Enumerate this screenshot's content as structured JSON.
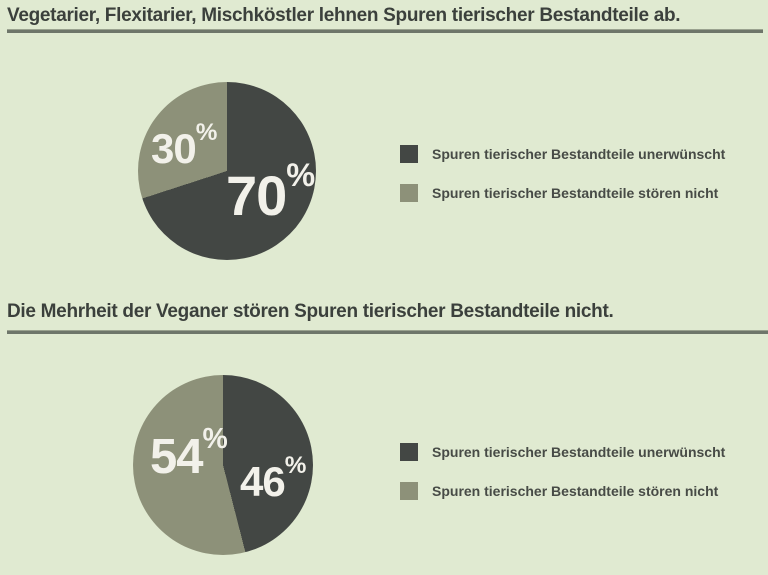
{
  "page": {
    "background_color": "#e0ead1",
    "separator_color": "#6e766a",
    "title_color": "#3b403c",
    "legend_text_color": "#474b46",
    "pie_label_color": "#f2f1ea"
  },
  "sections": [
    {
      "title": "Vegetarier, Flexitarier, Mischköstler lehnen Spuren tierischer Bestandteile ab.",
      "legend": [
        {
          "label": "Spuren tierischer Bestandteile unerwünscht",
          "color": "#434744"
        },
        {
          "label": "Spuren tierischer Bestandteile stören nicht",
          "color": "#8d9179"
        }
      ]
    },
    {
      "title": "Die Mehrheit der Veganer stören Spuren tierischer Bestandteile nicht.",
      "legend": [
        {
          "label": "Spuren tierischer Bestandteile unerwünscht",
          "color": "#434744"
        },
        {
          "label": "Spuren tierischer Bestandteile stören nicht",
          "color": "#8d9179"
        }
      ]
    }
  ],
  "chart_data": [
    {
      "type": "pie",
      "title": "Vegetarier, Flexitarier, Mischköstler lehnen Spuren tierischer Bestandteile ab.",
      "labels": [
        "Spuren tierischer Bestandteile unerwünscht",
        "Spuren tierischer Bestandteile stören nicht"
      ],
      "values": [
        70,
        30
      ],
      "unit": "percent",
      "unit_symbol": "%",
      "colors": [
        "#434744",
        "#8d9179"
      ],
      "start_angle_deg": 0,
      "direction": "clockwise",
      "legend_position": "right",
      "data_labels": [
        "70%",
        "30%"
      ]
    },
    {
      "type": "pie",
      "title": "Die Mehrheit der Veganer stören Spuren tierischer Bestandteile nicht.",
      "labels": [
        "Spuren tierischer Bestandteile unerwünscht",
        "Spuren tierischer Bestandteile stören nicht"
      ],
      "values": [
        46,
        54
      ],
      "unit": "percent",
      "unit_symbol": "%",
      "colors": [
        "#434744",
        "#8d9179"
      ],
      "start_angle_deg": 0,
      "direction": "clockwise",
      "legend_position": "right",
      "data_labels": [
        "46%",
        "54%"
      ]
    }
  ]
}
